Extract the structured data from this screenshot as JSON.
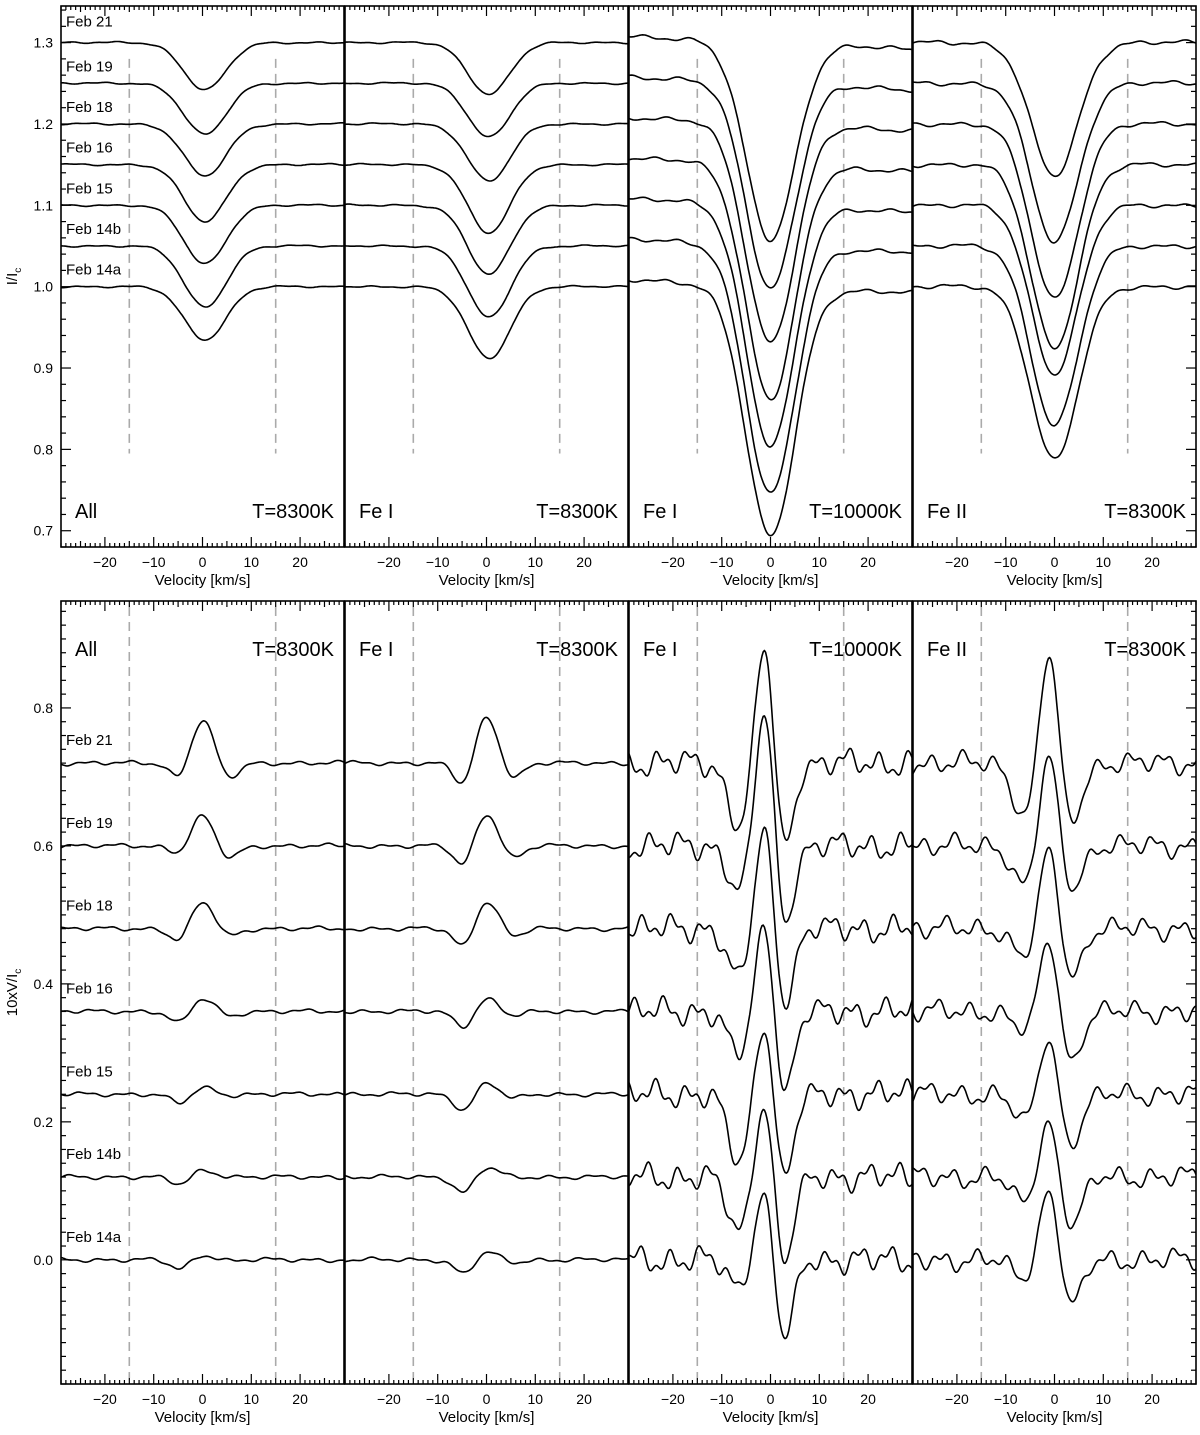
{
  "figure": {
    "top": {
      "ylabel": "I/I",
      "ylabel_sub": "c",
      "ylim": [
        0.68,
        1.345
      ],
      "yticks": [
        0.7,
        0.8,
        0.9,
        1.0,
        1.1,
        1.2,
        1.3
      ],
      "ytick_labels": [
        "0.7",
        "0.8",
        "0.9",
        "1.0",
        "1.1",
        "1.2",
        "1.3"
      ]
    },
    "bottom": {
      "ylabel": "10xV/I",
      "ylabel_sub": "c",
      "ylim": [
        -0.18,
        0.955
      ],
      "yticks": [
        0.0,
        0.2,
        0.4,
        0.6,
        0.8
      ],
      "ytick_labels": [
        "0.0",
        "0.2",
        "0.4",
        "0.6",
        "0.8"
      ]
    },
    "xlabel": "Velocity [km/s]",
    "xlim": [
      -29,
      29
    ],
    "xticks": [
      -20,
      -10,
      0,
      10,
      20
    ],
    "xtick_labels": [
      "−20",
      "−10",
      "0",
      "10",
      "20"
    ],
    "dashed_lines_x": [
      -15,
      15
    ],
    "dates": [
      "Feb 21",
      "Feb 19",
      "Feb 18",
      "Feb 16",
      "Feb 15",
      "Feb 14b",
      "Feb 14a"
    ],
    "panels": [
      {
        "left_label": "All",
        "right_label": "T=8300K"
      },
      {
        "left_label": "Fe I",
        "right_label": "T=8300K"
      },
      {
        "left_label": "Fe I",
        "right_label": "T=10000K"
      },
      {
        "left_label": "Fe II",
        "right_label": "T=8300K"
      }
    ]
  },
  "chart_data": [
    {
      "type": "line",
      "title": "",
      "subtitle": "All T=8300K",
      "xlabel": "Velocity [km/s]",
      "ylabel": "I/Ic",
      "xlim": [
        -29,
        29
      ],
      "ylim": [
        0.68,
        1.345
      ],
      "series": [
        {
          "name": "Feb 21",
          "offset": 1.3,
          "min": 1.242,
          "min_at": 0.5
        },
        {
          "name": "Feb 19",
          "offset": 1.25,
          "min": 1.187,
          "min_at": 0.5
        },
        {
          "name": "Feb 18",
          "offset": 1.2,
          "min": 1.136,
          "min_at": 0.5
        },
        {
          "name": "Feb 16",
          "offset": 1.15,
          "min": 1.08,
          "min_at": 0.5
        },
        {
          "name": "Feb 15",
          "offset": 1.1,
          "min": 1.028,
          "min_at": 0.5
        },
        {
          "name": "Feb 14b",
          "offset": 1.05,
          "min": 0.975,
          "min_at": 0.5
        },
        {
          "name": "Feb 14a",
          "offset": 1.0,
          "min": 0.935,
          "min_at": 0.5
        }
      ]
    },
    {
      "type": "line",
      "title": "",
      "subtitle": "Fe I T=8300K",
      "xlabel": "Velocity [km/s]",
      "ylabel": "I/Ic",
      "xlim": [
        -29,
        29
      ],
      "ylim": [
        0.68,
        1.345
      ],
      "series": [
        {
          "name": "Feb 21",
          "offset": 1.3,
          "min": 1.237,
          "min_at": 0.5
        },
        {
          "name": "Feb 19",
          "offset": 1.25,
          "min": 1.184,
          "min_at": 0.5
        },
        {
          "name": "Feb 18",
          "offset": 1.2,
          "min": 1.13,
          "min_at": 0.5
        },
        {
          "name": "Feb 16",
          "offset": 1.15,
          "min": 1.066,
          "min_at": 0.5
        },
        {
          "name": "Feb 15",
          "offset": 1.1,
          "min": 1.015,
          "min_at": 0.5
        },
        {
          "name": "Feb 14b",
          "offset": 1.05,
          "min": 0.962,
          "min_at": 0.5
        },
        {
          "name": "Feb 14a",
          "offset": 1.0,
          "min": 0.912,
          "min_at": 0.5
        }
      ]
    },
    {
      "type": "line",
      "title": "",
      "subtitle": "Fe I T=10000K",
      "xlabel": "Velocity [km/s]",
      "ylabel": "I/Ic",
      "xlim": [
        -29,
        29
      ],
      "ylim": [
        0.68,
        1.345
      ],
      "series": [
        {
          "name": "Feb 21",
          "offset": 1.3,
          "min": 1.058,
          "min_at": 0.0
        },
        {
          "name": "Feb 19",
          "offset": 1.25,
          "min": 0.998,
          "min_at": 0.0
        },
        {
          "name": "Feb 18",
          "offset": 1.2,
          "min": 0.932,
          "min_at": 0.0
        },
        {
          "name": "Feb 16",
          "offset": 1.15,
          "min": 0.862,
          "min_at": 0.0
        },
        {
          "name": "Feb 15",
          "offset": 1.1,
          "min": 0.805,
          "min_at": 0.0
        },
        {
          "name": "Feb 14b",
          "offset": 1.05,
          "min": 0.745,
          "min_at": 0.0
        },
        {
          "name": "Feb 14a",
          "offset": 1.0,
          "min": 0.693,
          "min_at": 0.0
        }
      ]
    },
    {
      "type": "line",
      "title": "",
      "subtitle": "Fe II T=8300K",
      "xlabel": "Velocity [km/s]",
      "ylabel": "I/Ic",
      "xlim": [
        -29,
        29
      ],
      "ylim": [
        0.68,
        1.345
      ],
      "series": [
        {
          "name": "Feb 21",
          "offset": 1.3,
          "min": 1.136,
          "min_at": 0.0
        },
        {
          "name": "Feb 19",
          "offset": 1.25,
          "min": 1.055,
          "min_at": 0.0
        },
        {
          "name": "Feb 18",
          "offset": 1.2,
          "min": 0.985,
          "min_at": 0.0
        },
        {
          "name": "Feb 16",
          "offset": 1.15,
          "min": 0.925,
          "min_at": 0.0
        },
        {
          "name": "Feb 15",
          "offset": 1.1,
          "min": 0.893,
          "min_at": 0.0
        },
        {
          "name": "Feb 14b",
          "offset": 1.05,
          "min": 0.83,
          "min_at": 0.0
        },
        {
          "name": "Feb 14a",
          "offset": 1.0,
          "min": 0.787,
          "min_at": 0.0
        }
      ]
    },
    {
      "type": "line",
      "title": "",
      "subtitle": "All T=8300K",
      "xlabel": "Velocity [km/s]",
      "ylabel": "10xV/Ic",
      "xlim": [
        -29,
        29
      ],
      "ylim": [
        -0.18,
        0.955
      ],
      "series": [
        {
          "name": "Feb 21",
          "offset": 0.72,
          "peak": 0.785,
          "neg_left": 0.692,
          "neg_right": 0.693
        },
        {
          "name": "Feb 19",
          "offset": 0.6,
          "peak": 0.645,
          "neg_left": 0.585,
          "neg_right": 0.578
        },
        {
          "name": "Feb 18",
          "offset": 0.48,
          "peak": 0.52,
          "neg_left": 0.458,
          "neg_right": 0.466
        },
        {
          "name": "Feb 16",
          "offset": 0.36,
          "peak": 0.38,
          "neg_left": 0.34,
          "neg_right": 0.352
        },
        {
          "name": "Feb 15",
          "offset": 0.24,
          "peak": 0.25,
          "neg_left": 0.225,
          "neg_right": 0.238
        },
        {
          "name": "Feb 14b",
          "offset": 0.12,
          "peak": 0.13,
          "neg_left": 0.108,
          "neg_right": 0.12
        },
        {
          "name": "Feb 14a",
          "offset": 0.0,
          "peak": 0.008,
          "neg_left": -0.015,
          "neg_right": -0.002
        }
      ]
    },
    {
      "type": "line",
      "title": "",
      "subtitle": "Fe I T=8300K",
      "xlabel": "Velocity [km/s]",
      "ylabel": "10xV/Ic",
      "xlim": [
        -29,
        29
      ],
      "ylim": [
        -0.18,
        0.955
      ],
      "series": [
        {
          "name": "Feb 21",
          "offset": 0.72,
          "peak": 0.79,
          "neg_left": 0.68,
          "neg_right": 0.693
        },
        {
          "name": "Feb 19",
          "offset": 0.6,
          "peak": 0.65,
          "neg_left": 0.565,
          "neg_right": 0.578
        },
        {
          "name": "Feb 18",
          "offset": 0.48,
          "peak": 0.522,
          "neg_left": 0.448,
          "neg_right": 0.466
        },
        {
          "name": "Feb 16",
          "offset": 0.36,
          "peak": 0.38,
          "neg_left": 0.335,
          "neg_right": 0.352
        },
        {
          "name": "Feb 15",
          "offset": 0.24,
          "peak": 0.258,
          "neg_left": 0.215,
          "neg_right": 0.232
        },
        {
          "name": "Feb 14b",
          "offset": 0.12,
          "peak": 0.135,
          "neg_left": 0.095,
          "neg_right": 0.118
        },
        {
          "name": "Feb 14a",
          "offset": 0.0,
          "peak": 0.012,
          "neg_left": -0.022,
          "neg_right": -0.005
        }
      ]
    },
    {
      "type": "line",
      "title": "",
      "subtitle": "Fe I T=10000K",
      "xlabel": "Velocity [km/s]",
      "ylabel": "10xV/Ic",
      "xlim": [
        -29,
        29
      ],
      "ylim": [
        -0.18,
        0.955
      ],
      "series": [
        {
          "name": "Feb 21",
          "offset": 0.72,
          "peak": 0.915,
          "neg_left": 0.628,
          "neg_right": 0.58
        },
        {
          "name": "Feb 19",
          "offset": 0.6,
          "peak": 0.82,
          "neg_left": 0.535,
          "neg_right": 0.465
        },
        {
          "name": "Feb 18",
          "offset": 0.48,
          "peak": 0.65,
          "neg_left": 0.408,
          "neg_right": 0.35
        },
        {
          "name": "Feb 16",
          "offset": 0.36,
          "peak": 0.51,
          "neg_left": 0.295,
          "neg_right": 0.225
        },
        {
          "name": "Feb 15",
          "offset": 0.24,
          "peak": 0.365,
          "neg_left": 0.14,
          "neg_right": 0.105
        },
        {
          "name": "Feb 14b",
          "offset": 0.12,
          "peak": 0.25,
          "neg_left": 0.04,
          "neg_right": -0.02
        },
        {
          "name": "Feb 14a",
          "offset": 0.0,
          "peak": 0.118,
          "neg_left": -0.04,
          "neg_right": -0.13
        }
      ]
    },
    {
      "type": "line",
      "title": "",
      "subtitle": "Fe II T=8300K",
      "xlabel": "Velocity [km/s]",
      "ylabel": "10xV/Ic",
      "xlim": [
        -29,
        29
      ],
      "ylim": [
        -0.18,
        0.955
      ],
      "series": [
        {
          "name": "Feb 21",
          "offset": 0.72,
          "peak": 0.905,
          "neg_left": 0.64,
          "neg_right": 0.62
        },
        {
          "name": "Feb 19",
          "offset": 0.6,
          "peak": 0.75,
          "neg_left": 0.54,
          "neg_right": 0.525
        },
        {
          "name": "Feb 18",
          "offset": 0.48,
          "peak": 0.615,
          "neg_left": 0.435,
          "neg_right": 0.4
        },
        {
          "name": "Feb 16",
          "offset": 0.36,
          "peak": 0.48,
          "neg_left": 0.33,
          "neg_right": 0.278
        },
        {
          "name": "Feb 15",
          "offset": 0.24,
          "peak": 0.34,
          "neg_left": 0.2,
          "neg_right": 0.158
        },
        {
          "name": "Feb 14b",
          "offset": 0.12,
          "peak": 0.22,
          "neg_left": 0.08,
          "neg_right": 0.04
        },
        {
          "name": "Feb 14a",
          "offset": 0.0,
          "peak": 0.118,
          "neg_left": -0.03,
          "neg_right": -0.075
        }
      ]
    }
  ]
}
